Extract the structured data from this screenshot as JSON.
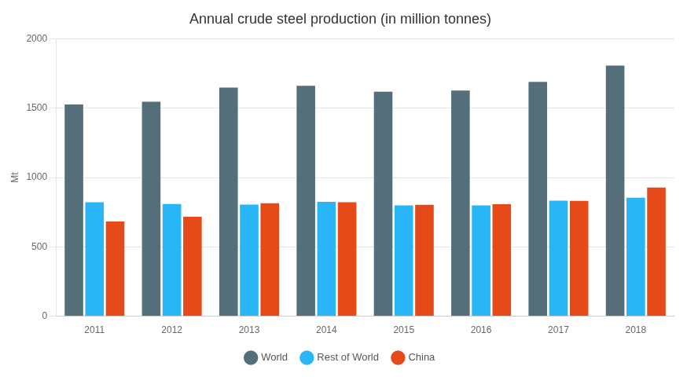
{
  "chart_data": {
    "type": "bar",
    "title": "Annual crude steel production (in million tonnes)",
    "ylabel": "Mt",
    "categories": [
      "2011",
      "2012",
      "2013",
      "2014",
      "2015",
      "2016",
      "2017",
      "2018"
    ],
    "series": [
      {
        "name": "World",
        "color": "#546e7a",
        "values": [
          1527,
          1548,
          1650,
          1662,
          1620,
          1628,
          1691,
          1808
        ]
      },
      {
        "name": "Rest of World",
        "color": "#29b6f6",
        "values": [
          822,
          810,
          805,
          825,
          800,
          800,
          833,
          855
        ]
      },
      {
        "name": "China",
        "color": "#e64a19",
        "values": [
          683,
          717,
          815,
          822,
          804,
          808,
          832,
          928
        ]
      }
    ],
    "ylim": [
      0,
      2000
    ],
    "yticks": [
      0,
      500,
      1000,
      1500,
      2000
    ],
    "grid": true,
    "legend": "bottom"
  }
}
